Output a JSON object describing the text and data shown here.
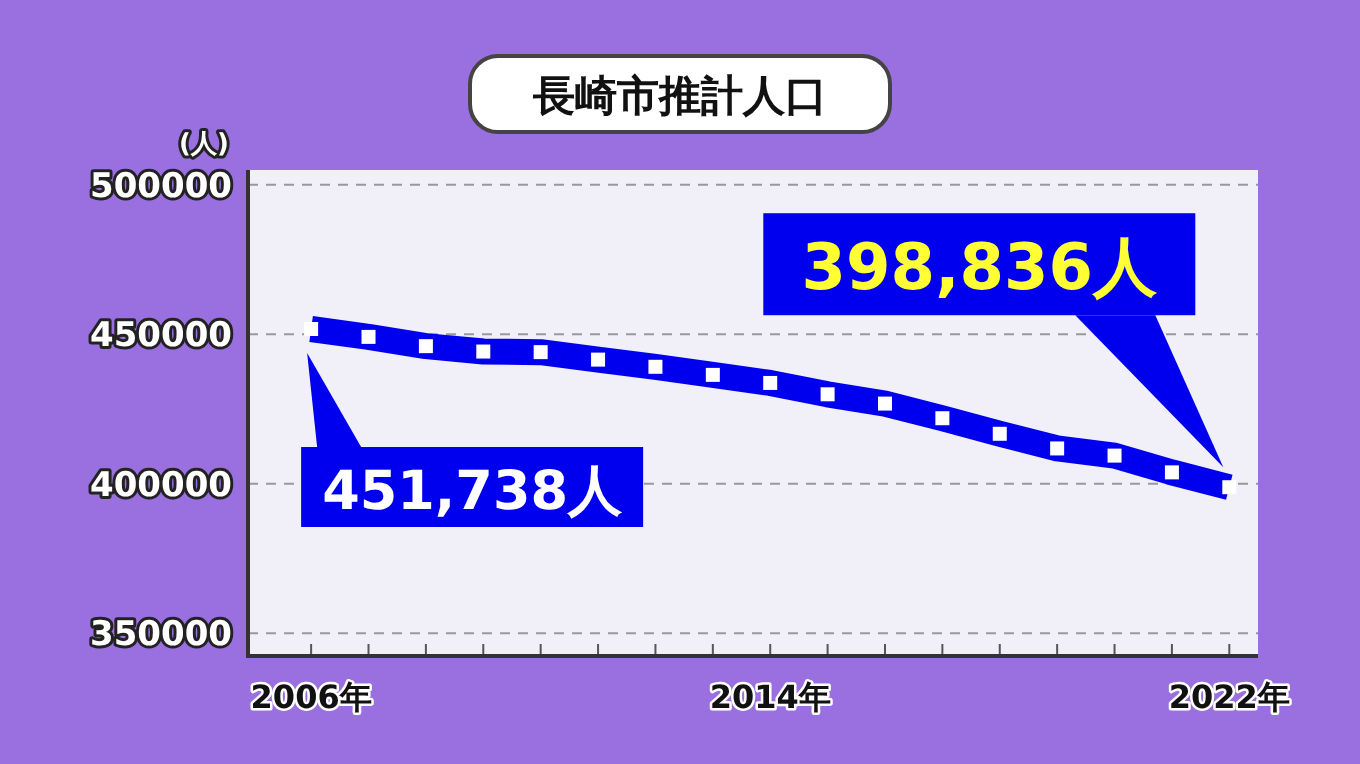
{
  "chart_data": {
    "type": "line",
    "title": "長崎市推計人口",
    "ylabel": "(人)",
    "x": [
      2006,
      2007,
      2008,
      2009,
      2010,
      2011,
      2012,
      2013,
      2014,
      2015,
      2016,
      2017,
      2018,
      2019,
      2020,
      2021,
      2022
    ],
    "series": [
      {
        "color": "#0000ee",
        "values": [
          451738,
          449100,
          446000,
          444200,
          444000,
          441500,
          439100,
          436400,
          433700,
          429900,
          426800,
          421900,
          416700,
          411800,
          409400,
          403800,
          398836
        ]
      }
    ],
    "xlim": [
      2004.9,
      2022.5
    ],
    "xticks": [
      {
        "value": 2006,
        "label": "2006年"
      },
      {
        "value": 2007,
        "label": null
      },
      {
        "value": 2008,
        "label": null
      },
      {
        "value": 2009,
        "label": null
      },
      {
        "value": 2010,
        "label": null
      },
      {
        "value": 2011,
        "label": null
      },
      {
        "value": 2012,
        "label": null
      },
      {
        "value": 2013,
        "label": null
      },
      {
        "value": 2014,
        "label": "2014年"
      },
      {
        "value": 2015,
        "label": null
      },
      {
        "value": 2016,
        "label": null
      },
      {
        "value": 2017,
        "label": null
      },
      {
        "value": 2018,
        "label": null
      },
      {
        "value": 2019,
        "label": null
      },
      {
        "value": 2020,
        "label": null
      },
      {
        "value": 2021,
        "label": null
      },
      {
        "value": 2022,
        "label": "2022年"
      }
    ],
    "ylim": [
      342400,
      504900
    ],
    "yticks": [
      350000,
      400000,
      450000,
      500000
    ],
    "grid": "y",
    "marker": "square",
    "line_style": "solid",
    "annotations": [
      {
        "text": "451,738人",
        "x": 2006,
        "y": 451738
      },
      "398,836人"
    ]
  }
}
